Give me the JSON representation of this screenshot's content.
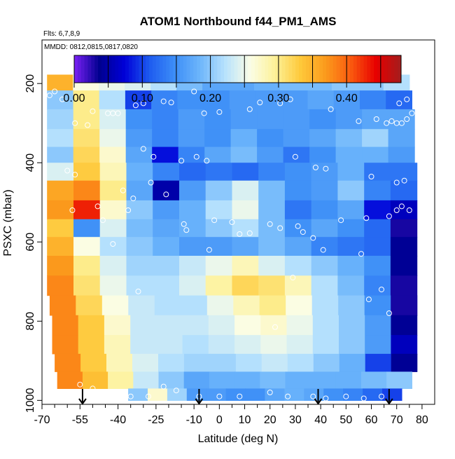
{
  "chart_data": {
    "type": "heatmap",
    "title": "ATOM1 Northbound f44_PM1_AMS",
    "annotations": {
      "flights": "Flts: 6,7,8,9",
      "dates": "MMDD: 0812,0815,0817,0820"
    },
    "xlabel": "Latitude (deg N)",
    "ylabel": "PSXC (mbar)",
    "xlim": [
      -70,
      85
    ],
    "ylim": [
      1010,
      90
    ],
    "x_ticks": [
      -70,
      -55,
      -40,
      -25,
      -10,
      0,
      10,
      20,
      30,
      40,
      50,
      60,
      70,
      80
    ],
    "x_tick_labels": [
      "-70",
      "-55",
      "-40",
      "-25",
      "-10",
      "0",
      "10",
      "20",
      "30",
      "40",
      "50",
      "60",
      "70",
      "80"
    ],
    "y_ticks": [
      200,
      400,
      600,
      800,
      1000
    ],
    "y_tick_labels": [
      "200",
      "400",
      "600",
      "800",
      "1000"
    ],
    "colorbar": {
      "min": 0.0,
      "max": 0.48,
      "ticks": [
        0.0,
        0.1,
        0.2,
        0.3,
        0.4
      ],
      "tick_labels": [
        "0.00",
        "0.10",
        "0.20",
        "0.30",
        "0.40"
      ],
      "colors": [
        "#7b21f5",
        "#00008f",
        "#0000d8",
        "#1e5cf0",
        "#3d8ef7",
        "#6db6fb",
        "#b7e2fd",
        "#fbfde6",
        "#fdf197",
        "#fec93a",
        "#fb9a1c",
        "#fa5a0f",
        "#e80000",
        "#a31d1d"
      ]
    },
    "flight_markers": [
      -54,
      -8,
      39,
      67
    ],
    "pressure_bands": [
      {
        "p": 195,
        "lat": [
          -68,
          75
        ],
        "values": [
          0.35,
          0.26,
          0.25,
          0.24,
          0.22,
          0.19,
          0.17,
          0.17,
          0.18,
          0.19,
          0.19,
          0.2,
          0.2,
          0.22
        ]
      },
      {
        "p": 240,
        "lat": [
          -68,
          76
        ],
        "values": [
          0.2,
          0.3,
          0.22,
          0.1,
          0.14,
          0.15,
          0.15,
          0.16,
          0.16,
          0.16,
          0.17,
          0.16,
          0.14,
          0.12
        ]
      },
      {
        "p": 290,
        "lat": [
          -68,
          77
        ],
        "values": [
          0.21,
          0.3,
          0.24,
          0.15,
          0.14,
          0.16,
          0.15,
          0.16,
          0.16,
          0.16,
          0.15,
          0.16,
          0.17,
          0.17
        ]
      },
      {
        "p": 340,
        "lat": [
          -68,
          77
        ],
        "values": [
          0.22,
          0.31,
          0.25,
          0.16,
          0.14,
          0.16,
          0.15,
          0.18,
          0.15,
          0.16,
          0.17,
          0.19,
          0.21,
          0.17
        ]
      },
      {
        "p": 380,
        "lat": [
          -68,
          77
        ],
        "values": [
          0.2,
          0.32,
          0.27,
          0.17,
          0.08,
          0.14,
          0.17,
          0.19,
          0.16,
          0.13,
          0.15,
          0.18,
          0.18,
          0.16
        ]
      },
      {
        "p": 420,
        "lat": [
          -68,
          78
        ],
        "values": [
          0.24,
          0.33,
          0.28,
          0.18,
          0.14,
          0.12,
          0.13,
          0.12,
          0.14,
          0.15,
          0.16,
          0.18,
          0.13,
          0.13
        ]
      },
      {
        "p": 470,
        "lat": [
          -68,
          78
        ],
        "values": [
          0.36,
          0.38,
          0.3,
          0.17,
          0.05,
          0.16,
          0.2,
          0.24,
          0.19,
          0.15,
          0.16,
          0.2,
          0.14,
          0.12
        ]
      },
      {
        "p": 520,
        "lat": [
          -68,
          78
        ],
        "values": [
          0.37,
          0.43,
          0.27,
          0.2,
          0.16,
          0.18,
          0.22,
          0.25,
          0.19,
          0.13,
          0.15,
          0.17,
          0.08,
          0.06
        ]
      },
      {
        "p": 565,
        "lat": [
          -68,
          78
        ],
        "values": [
          0.33,
          0.15,
          0.24,
          0.19,
          0.17,
          0.18,
          0.2,
          0.22,
          0.19,
          0.15,
          0.17,
          0.15,
          0.12,
          0.03
        ]
      },
      {
        "p": 610,
        "lat": [
          -68,
          78
        ],
        "values": [
          0.35,
          0.26,
          0.22,
          0.2,
          0.18,
          0.16,
          0.16,
          0.17,
          0.19,
          0.17,
          0.14,
          0.13,
          0.12,
          0.04
        ]
      },
      {
        "p": 660,
        "lat": [
          -68,
          78
        ],
        "values": [
          0.37,
          0.3,
          0.24,
          0.21,
          0.21,
          0.23,
          0.25,
          0.28,
          0.24,
          0.22,
          0.2,
          0.18,
          0.15,
          0.04
        ]
      },
      {
        "p": 710,
        "lat": [
          -68,
          78
        ],
        "values": [
          0.38,
          0.31,
          0.25,
          0.22,
          0.22,
          0.24,
          0.29,
          0.32,
          0.31,
          0.28,
          0.22,
          0.19,
          0.14,
          0.03
        ]
      },
      {
        "p": 760,
        "lat": [
          -67,
          78
        ],
        "values": [
          0.38,
          0.32,
          0.26,
          0.23,
          0.22,
          0.22,
          0.25,
          0.28,
          0.3,
          0.26,
          0.22,
          0.2,
          0.15,
          0.03
        ]
      },
      {
        "p": 810,
        "lat": [
          -66,
          78
        ],
        "values": [
          0.38,
          0.33,
          0.27,
          0.23,
          0.23,
          0.23,
          0.24,
          0.26,
          0.27,
          0.25,
          0.22,
          0.2,
          0.16,
          0.04
        ]
      },
      {
        "p": 860,
        "lat": [
          -66,
          78
        ],
        "values": [
          0.38,
          0.33,
          0.28,
          0.23,
          0.23,
          0.22,
          0.23,
          0.24,
          0.25,
          0.24,
          0.22,
          0.2,
          0.16,
          0.06
        ]
      },
      {
        "p": 905,
        "lat": [
          -65,
          78
        ],
        "values": [
          0.38,
          0.33,
          0.28,
          0.24,
          0.22,
          0.21,
          0.21,
          0.22,
          0.23,
          0.22,
          0.2,
          0.18,
          0.1,
          0.04
        ]
      },
      {
        "p": 950,
        "lat": [
          -64,
          76
        ],
        "values": [
          0.38,
          0.34,
          0.29,
          0.23,
          0.2,
          0.17,
          0.18,
          0.18,
          0.19,
          0.18,
          0.18,
          0.18,
          0.19,
          0.2
        ]
      },
      {
        "p": 990,
        "lat": [
          -36,
          72
        ],
        "values": [
          0.2,
          0.27,
          0.21,
          0.16,
          0.16,
          0.15,
          0.15,
          0.17,
          0.18,
          0.17,
          0.15,
          0.14,
          0.12,
          0.1
        ]
      }
    ],
    "sample_points": [
      [
        -67,
        230
      ],
      [
        -65,
        220
      ],
      [
        -62,
        240
      ],
      [
        -50,
        270
      ],
      [
        -44,
        275
      ],
      [
        -42,
        275
      ],
      [
        -40,
        275
      ],
      [
        -33,
        255
      ],
      [
        -30,
        250
      ],
      [
        -22,
        245
      ],
      [
        -19,
        248
      ],
      [
        -10,
        220
      ],
      [
        -6,
        275
      ],
      [
        0,
        272
      ],
      [
        12,
        265
      ],
      [
        16,
        248
      ],
      [
        24,
        250
      ],
      [
        28,
        240
      ],
      [
        44,
        265
      ],
      [
        55,
        295
      ],
      [
        62,
        290
      ],
      [
        66,
        300
      ],
      [
        68,
        295
      ],
      [
        70,
        300
      ],
      [
        72,
        300
      ],
      [
        74,
        290
      ],
      [
        76,
        275
      ],
      [
        74,
        240
      ],
      [
        71,
        250
      ],
      [
        -57,
        300
      ],
      [
        -52,
        305
      ],
      [
        -30,
        365
      ],
      [
        -26,
        385
      ],
      [
        -15,
        395
      ],
      [
        -9,
        385
      ],
      [
        -5,
        395
      ],
      [
        30,
        385
      ],
      [
        38,
        412
      ],
      [
        42,
        415
      ],
      [
        60,
        435
      ],
      [
        70,
        450
      ],
      [
        73,
        445
      ],
      [
        -60,
        420
      ],
      [
        -57,
        430
      ],
      [
        -38,
        470
      ],
      [
        -34,
        490
      ],
      [
        -21,
        480
      ],
      [
        -27,
        450
      ],
      [
        -48,
        510
      ],
      [
        -36,
        520
      ],
      [
        -58,
        520
      ],
      [
        -46,
        545
      ],
      [
        -14,
        555
      ],
      [
        -2,
        545
      ],
      [
        5,
        550
      ],
      [
        20,
        555
      ],
      [
        31,
        560
      ],
      [
        48,
        545
      ],
      [
        58,
        540
      ],
      [
        67,
        535
      ],
      [
        70,
        520
      ],
      [
        72,
        510
      ],
      [
        75,
        520
      ],
      [
        -13,
        570
      ],
      [
        8,
        580
      ],
      [
        12,
        578
      ],
      [
        24,
        565
      ],
      [
        33,
        575
      ],
      [
        37,
        590
      ],
      [
        41,
        620
      ],
      [
        -42,
        605
      ],
      [
        -4,
        620
      ],
      [
        56,
        630
      ],
      [
        29,
        690
      ],
      [
        -32,
        725
      ],
      [
        59,
        745
      ],
      [
        64,
        720
      ],
      [
        67,
        780
      ],
      [
        22,
        815
      ],
      [
        -55,
        960
      ],
      [
        -50,
        970
      ],
      [
        -35,
        990
      ],
      [
        -28,
        990
      ],
      [
        -22,
        965
      ],
      [
        -17,
        975
      ],
      [
        -8,
        990
      ],
      [
        0,
        990
      ],
      [
        8,
        990
      ],
      [
        20,
        980
      ],
      [
        27,
        990
      ],
      [
        37,
        990
      ],
      [
        42,
        995
      ],
      [
        50,
        990
      ],
      [
        57,
        995
      ],
      [
        64,
        990
      ]
    ]
  }
}
